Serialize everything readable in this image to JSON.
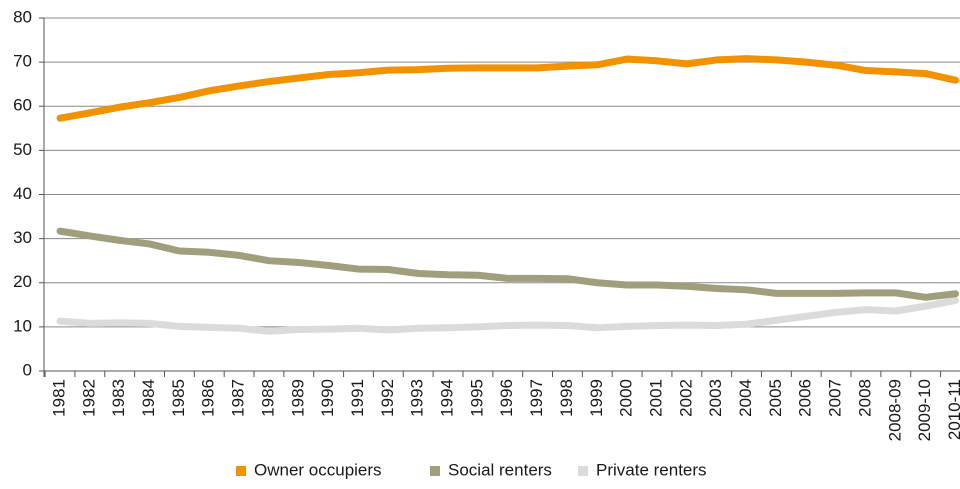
{
  "chart_data": {
    "type": "line",
    "categories": [
      "1981",
      "1982",
      "1983",
      "1984",
      "1985",
      "1986",
      "1987",
      "1988",
      "1989",
      "1990",
      "1991",
      "1992",
      "1993",
      "1994",
      "1995",
      "1996",
      "1997",
      "1998",
      "1999",
      "2000",
      "2001",
      "2002",
      "2003",
      "2004",
      "2005",
      "2006",
      "2007",
      "2008",
      "2008-09",
      "2009-10",
      "2010-11"
    ],
    "series": [
      {
        "name": "Owner occupiers",
        "color": "#f39200",
        "values": [
          57.3,
          58.5,
          59.8,
          60.8,
          62,
          63.5,
          64.6,
          65.6,
          66.4,
          67.2,
          67.6,
          68.2,
          68.3,
          68.6,
          68.7,
          68.7,
          68.7,
          69.1,
          69.4,
          70.7,
          70.3,
          69.6,
          70.5,
          70.8,
          70.5,
          70,
          69.3,
          68.1,
          67.8,
          67.4,
          65.9
        ]
      },
      {
        "name": "Social renters",
        "color": "#a09e7d",
        "values": [
          31.7,
          30.6,
          29.6,
          28.8,
          27.2,
          26.9,
          26.2,
          25,
          24.6,
          23.9,
          23.1,
          23,
          22.1,
          21.8,
          21.7,
          21,
          21,
          20.9,
          20,
          19.5,
          19.5,
          19.2,
          18.7,
          18.4,
          17.6,
          17.6,
          17.6,
          17.7,
          17.7,
          16.7,
          17.5
        ]
      },
      {
        "name": "Private renters",
        "color": "#dcdadb",
        "values": [
          11.3,
          10.8,
          10.9,
          10.8,
          10.1,
          9.9,
          9.7,
          9,
          9.4,
          9.5,
          9.7,
          9.3,
          9.7,
          9.8,
          10,
          10.3,
          10.4,
          10.3,
          9.8,
          10.1,
          10.3,
          10.4,
          10.3,
          10.6,
          11.5,
          12.4,
          13.3,
          13.9,
          13.6,
          14.7,
          16
        ]
      }
    ],
    "ylim": [
      0,
      80
    ],
    "yticks": [
      0,
      10,
      20,
      30,
      40,
      50,
      60,
      70,
      80
    ],
    "grid": true,
    "legend": "bottom"
  }
}
